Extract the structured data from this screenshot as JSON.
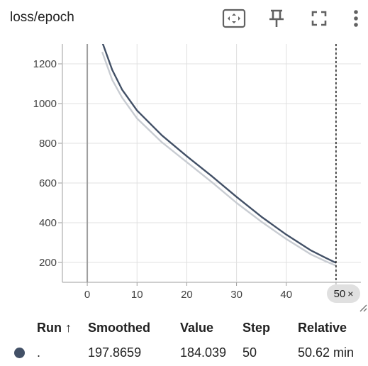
{
  "card": {
    "title": "loss/epoch",
    "toolbar": [
      {
        "name": "fit-domain-icon",
        "label": "Fit domain to data"
      },
      {
        "name": "pin-icon",
        "label": "Pin card"
      },
      {
        "name": "fullscreen-icon",
        "label": "Toggle full size"
      },
      {
        "name": "more-vert-icon",
        "label": "More"
      }
    ]
  },
  "chart_data": {
    "type": "line",
    "title": "loss/epoch",
    "xlabel": "",
    "ylabel": "",
    "xlim": [
      -5,
      55
    ],
    "ylim": [
      100,
      1300
    ],
    "x_ticks": [
      0,
      10,
      20,
      30,
      40,
      50
    ],
    "y_ticks": [
      200,
      400,
      600,
      800,
      1000,
      1200
    ],
    "grid": true,
    "hover_step": 50,
    "colors": {
      "smoothed": "#425066",
      "raw": "#c8ccd2"
    },
    "series": [
      {
        "role": "smoothed",
        "x": [
          3,
          5,
          7,
          10,
          15,
          20,
          25,
          30,
          35,
          40,
          45,
          48,
          50
        ],
        "y": [
          1310,
          1170,
          1070,
          965,
          840,
          735,
          635,
          530,
          430,
          340,
          260,
          222,
          197.8659
        ]
      },
      {
        "role": "raw",
        "x": [
          3,
          5,
          7,
          10,
          15,
          20,
          25,
          30,
          35,
          40,
          45,
          48,
          50
        ],
        "y": [
          1260,
          1120,
          1030,
          925,
          805,
          705,
          605,
          500,
          405,
          318,
          240,
          205,
          184.039
        ]
      }
    ]
  },
  "step_pill": {
    "value": "50",
    "close": "×"
  },
  "table": {
    "headers": {
      "run": "Run ↑",
      "smoothed": "Smoothed",
      "value": "Value",
      "step": "Step",
      "relative": "Relative"
    },
    "rows": [
      {
        "color": "#425066",
        "run": ".",
        "smoothed": "197.8659",
        "value": "184.039",
        "step": "50",
        "relative": "50.62 min"
      }
    ]
  }
}
